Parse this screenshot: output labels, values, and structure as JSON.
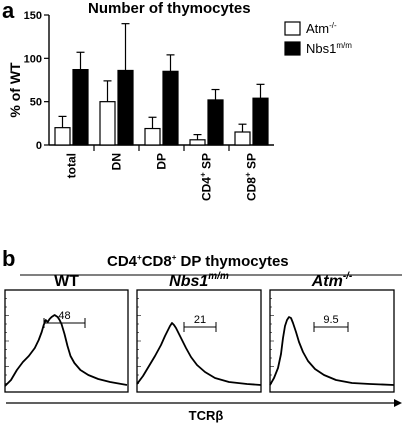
{
  "panel_a": {
    "letter": "a",
    "chart_data": {
      "type": "bar",
      "title": "Number of thymocytes",
      "ylabel": "% of WT",
      "ylim": [
        0,
        150
      ],
      "yticks": [
        0,
        50,
        100,
        150
      ],
      "categories": [
        "total",
        "DN",
        "DP",
        "CD4+ SP",
        "CD8+ SP"
      ],
      "category_labels": [
        {
          "base": "total",
          "sup": ""
        },
        {
          "base": "DN",
          "sup": ""
        },
        {
          "base": "DP",
          "sup": ""
        },
        {
          "base": "CD4",
          "sup": "+",
          "tail": " SP"
        },
        {
          "base": "CD8",
          "sup": "+",
          "tail": " SP"
        }
      ],
      "series": [
        {
          "name": "Atm-/-",
          "legend_base": "Atm",
          "legend_sup": "-/-",
          "fill": "#ffffff",
          "values": [
            20,
            50,
            19,
            6,
            15
          ],
          "errors": [
            13,
            24,
            13,
            6,
            9
          ]
        },
        {
          "name": "Nbs1m/m",
          "legend_base": "Nbs1",
          "legend_sup": "m/m",
          "fill": "#000000",
          "values": [
            87,
            86,
            85,
            52,
            54
          ],
          "errors": [
            20,
            54,
            19,
            12,
            16
          ]
        }
      ],
      "grid": false,
      "legend_position": "top-right"
    }
  },
  "panel_b": {
    "letter": "b",
    "title": {
      "p1": "CD4",
      "s1": "+",
      "p2": "CD8",
      "s2": "+",
      "p3": " DP thymocytes"
    },
    "xlabel": {
      "base": "TCR",
      "greek": "β"
    },
    "histograms": [
      {
        "title_base": "WT",
        "title_sup": "",
        "italic": false,
        "gate_value": "48"
      },
      {
        "title_base": "Nbs1",
        "title_sup": "m/m",
        "italic": true,
        "gate_value": "21"
      },
      {
        "title_base": "Atm",
        "title_sup": "-/-",
        "italic": true,
        "gate_value": "9.5"
      }
    ]
  },
  "colors": {
    "ink": "#000000",
    "paper": "#ffffff"
  }
}
